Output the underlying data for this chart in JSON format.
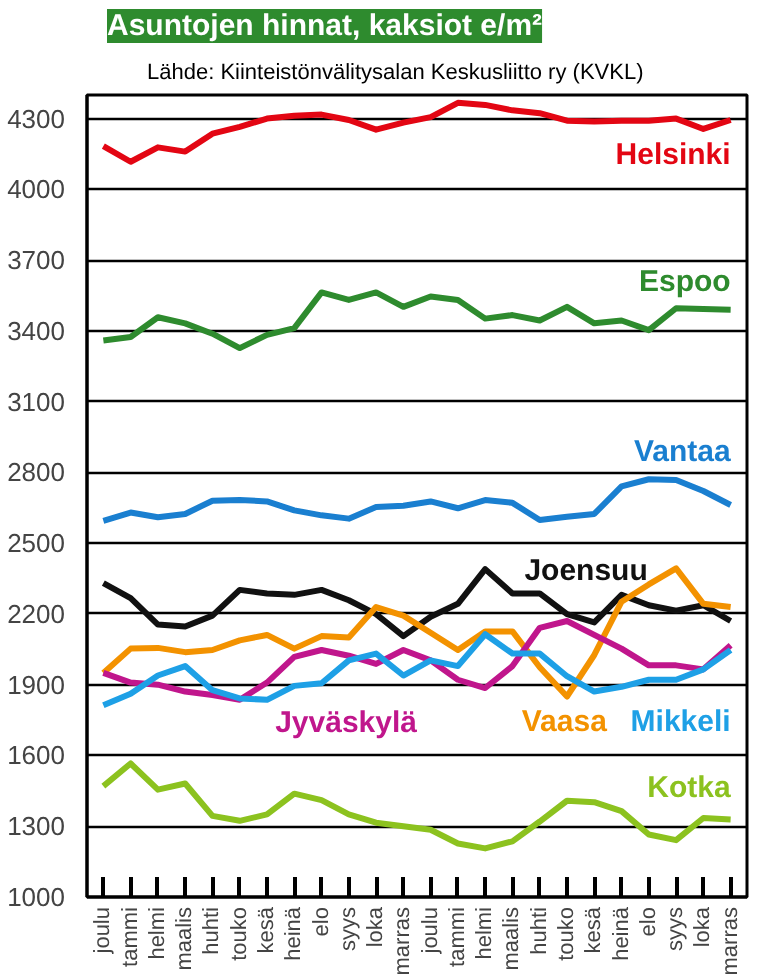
{
  "chart_data": {
    "type": "line",
    "title": "Asuntojen hinnat, kaksiot e/m²",
    "subtitle": "Lähde: Kiinteistönvälitysalan Keskusliitto ry (KVKL)",
    "categories": [
      "joulu",
      "tammi",
      "helmi",
      "maalis",
      "huhti",
      "touko",
      "kesä",
      "heinä",
      "elo",
      "syys",
      "loka",
      "marras",
      "joulu",
      "tammi",
      "helmi",
      "maalis",
      "huhti",
      "touko",
      "kesä",
      "heinä",
      "elo",
      "syys",
      "loka",
      "marras"
    ],
    "ylim": [
      1000,
      4400
    ],
    "yticks": [
      1000,
      1300,
      1600,
      1900,
      2200,
      2500,
      2800,
      3100,
      3400,
      3700,
      4000,
      4300
    ],
    "grid": "y",
    "marker": "none",
    "line_style": "solid",
    "series": [
      {
        "name": "Helsinki",
        "color": "#e30613",
        "values": [
          4183,
          4117,
          4178,
          4160,
          4236,
          4265,
          4300,
          4312,
          4317,
          4294,
          4253,
          4283,
          4306,
          4367,
          4358,
          4335,
          4323,
          4291,
          4288,
          4291,
          4291,
          4300,
          4256,
          4294
        ]
      },
      {
        "name": "Espoo",
        "color": "#2e8b2e",
        "values": [
          3359,
          3374,
          3458,
          3432,
          3388,
          3327,
          3383,
          3412,
          3563,
          3531,
          3563,
          3502,
          3546,
          3531,
          3452,
          3467,
          3444,
          3502,
          3432,
          3444,
          3403,
          3496,
          3493,
          3490
        ]
      },
      {
        "name": "Vantaa",
        "color": "#1a7fd0",
        "values": [
          2595,
          2630,
          2610,
          2624,
          2680,
          2683,
          2677,
          2639,
          2618,
          2604,
          2653,
          2659,
          2677,
          2648,
          2683,
          2671,
          2598,
          2612,
          2624,
          2741,
          2771,
          2768,
          2721,
          2662
        ]
      },
      {
        "name": "Joensuu",
        "color": "#111111",
        "values": [
          2331,
          2267,
          2155,
          2147,
          2193,
          2302,
          2287,
          2281,
          2302,
          2258,
          2199,
          2106,
          2188,
          2243,
          2390,
          2287,
          2287,
          2199,
          2164,
          2281,
          2237,
          2214,
          2237,
          2170
        ]
      },
      {
        "name": "Vaasa",
        "color": "#f39200",
        "values": [
          1950,
          2053,
          2056,
          2038,
          2047,
          2088,
          2111,
          2053,
          2106,
          2100,
          2229,
          2193,
          2120,
          2047,
          2126,
          2126,
          1974,
          1850,
          2026,
          2252,
          2325,
          2393,
          2243,
          2229
        ]
      },
      {
        "name": "Jyväskylä",
        "color": "#c0168c",
        "values": [
          1950,
          1909,
          1900,
          1871,
          1856,
          1836,
          1909,
          2018,
          2047,
          2023,
          1988,
          2047,
          2003,
          1921,
          1886,
          1979,
          2141,
          2170,
          2111,
          2053,
          1982,
          1982,
          1965,
          2067
        ]
      },
      {
        "name": "Mikkeli",
        "color": "#1ea0e6",
        "values": [
          1813,
          1862,
          1939,
          1979,
          1877,
          1842,
          1836,
          1895,
          1906,
          2003,
          2032,
          1939,
          2003,
          1979,
          2114,
          2032,
          2032,
          1936,
          1871,
          1891,
          1921,
          1921,
          1965,
          2047
        ]
      },
      {
        "name": "Kotka",
        "color": "#8cc21f",
        "values": [
          1470,
          1566,
          1455,
          1481,
          1344,
          1323,
          1350,
          1438,
          1411,
          1350,
          1315,
          1300,
          1285,
          1227,
          1206,
          1236,
          1320,
          1408,
          1402,
          1364,
          1265,
          1241,
          1335,
          1329
        ]
      }
    ]
  }
}
